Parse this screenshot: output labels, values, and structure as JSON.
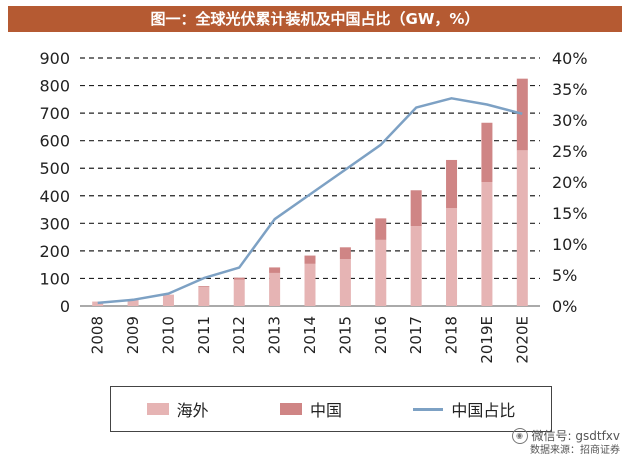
{
  "title": "图一：全球光伏累计装机及中国占比（GW，%）",
  "legend": {
    "overseas": "海外",
    "china": "中国",
    "share": "中国占比"
  },
  "footer": {
    "wechat": "微信号: gsdtfxv",
    "source": "数据来源：招商证券"
  },
  "colors": {
    "overseas": "#e6b4b4",
    "china": "#cf8585",
    "share": "#7da1c4",
    "title_bg": "#b55a32"
  },
  "chart_data": {
    "type": "bar",
    "stacked": true,
    "categories": [
      "2008",
      "2009",
      "2010",
      "2011",
      "2012",
      "2013",
      "2014",
      "2015",
      "2016",
      "2017",
      "2018",
      "2019E",
      "2020E"
    ],
    "series": [
      {
        "name": "海外",
        "values": [
          16,
          23,
          40,
          69,
          96,
          120,
          153,
          170,
          240,
          290,
          355,
          450,
          565
        ]
      },
      {
        "name": "中国",
        "values": [
          0.1,
          0.3,
          0.8,
          3,
          7,
          20,
          30,
          43,
          78,
          130,
          175,
          215,
          260
        ]
      },
      {
        "name": "中国占比",
        "axis": "right",
        "type": "line",
        "values": [
          0.5,
          1.0,
          2.0,
          4.5,
          6.2,
          14.0,
          18.0,
          22.0,
          26.0,
          32.0,
          33.5,
          32.5,
          31.0
        ]
      }
    ],
    "ylim": [
      0,
      900
    ],
    "yticks": [
      "0",
      "100",
      "200",
      "300",
      "400",
      "500",
      "600",
      "700",
      "800",
      "900"
    ],
    "y2lim": [
      0,
      40
    ],
    "y2ticks": [
      "0%",
      "5%",
      "10%",
      "15%",
      "20%",
      "25%",
      "30%",
      "35%",
      "40%"
    ],
    "grid": true,
    "legend_position": "bottom"
  }
}
